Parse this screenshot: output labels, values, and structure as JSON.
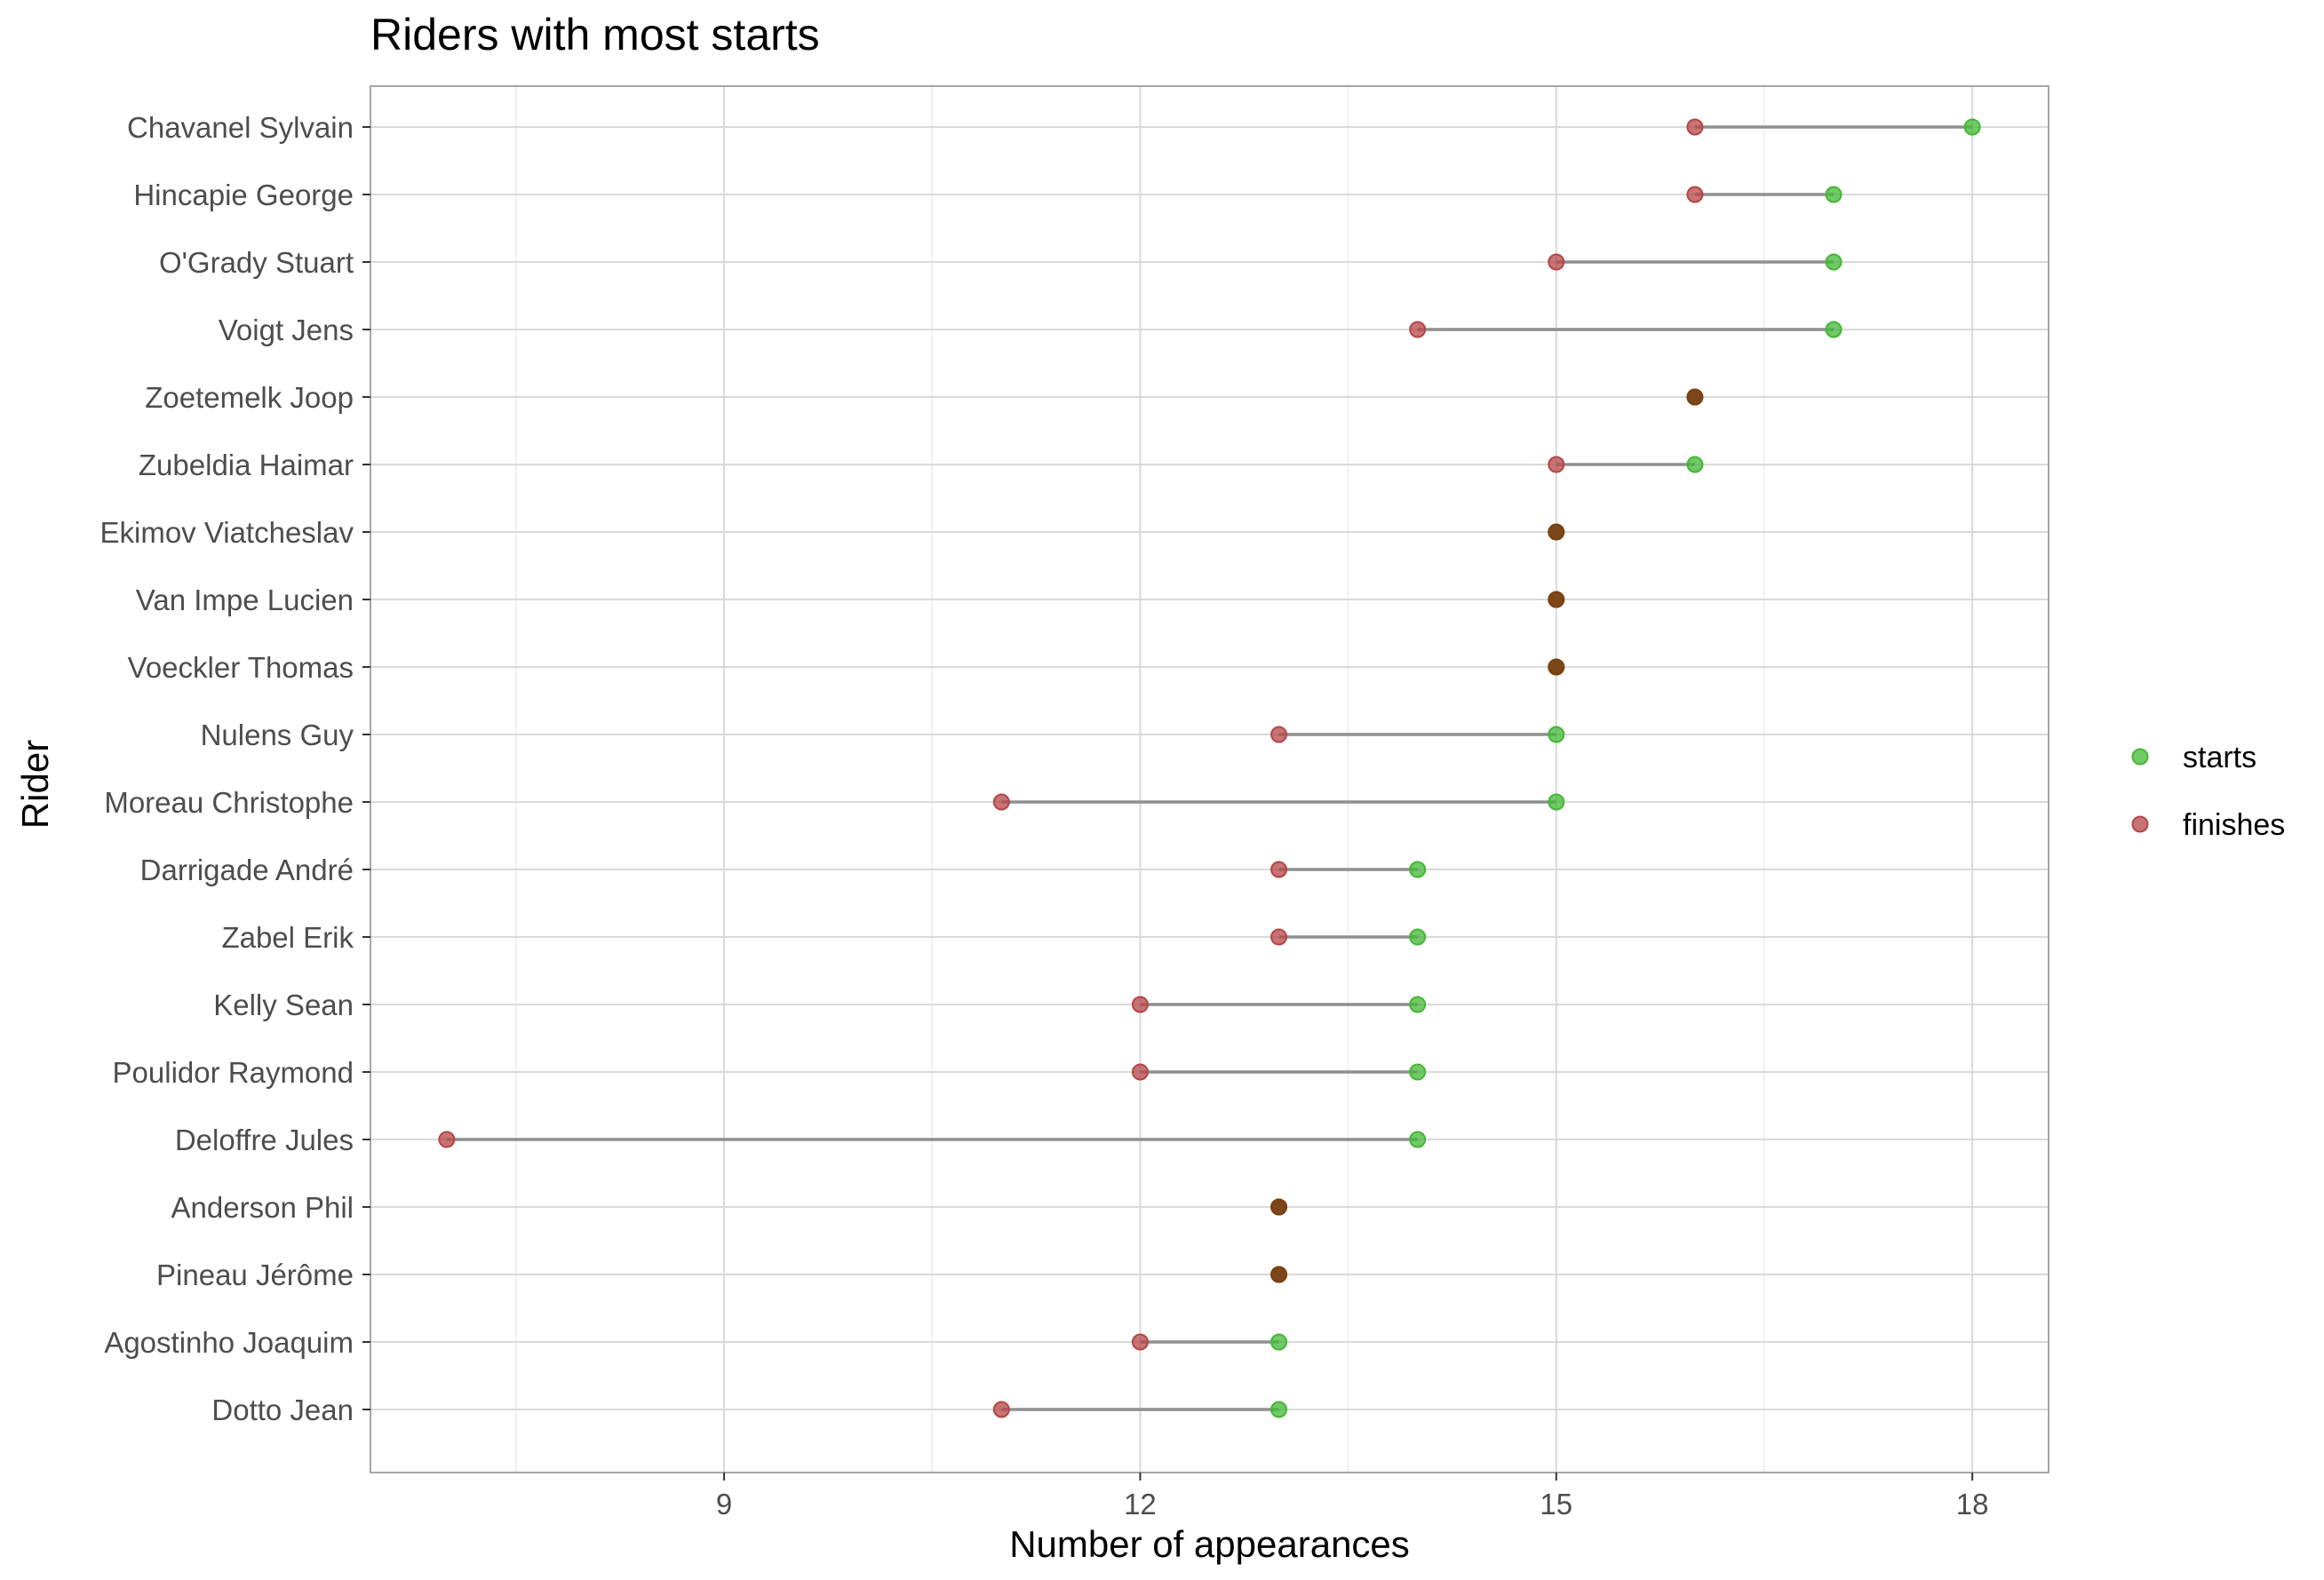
{
  "chart_data": {
    "type": "scatter",
    "subtype": "dumbbell",
    "title": "Riders with most starts",
    "xlabel": "Number of appearances",
    "ylabel": "Rider",
    "xlim": [
      6.45,
      18.55
    ],
    "xticks": [
      9,
      12,
      15,
      18
    ],
    "grid": true,
    "legend_position": "right",
    "colors": {
      "starts": "#43b734",
      "finishes": "#b54545",
      "overlap": "#7c3f14",
      "segment": "#8f8f8f",
      "grid": "#d9d9d9",
      "panel_border": "#a6a6a6",
      "tick_text": "#4d4d4d"
    },
    "categories": [
      "Chavanel Sylvain",
      "Hincapie George",
      "O'Grady Stuart",
      "Voigt Jens",
      "Zoetemelk Joop",
      "Zubeldia Haimar",
      "Ekimov Viatcheslav",
      "Van Impe Lucien",
      "Voeckler Thomas",
      "Nulens Guy",
      "Moreau Christophe",
      "Darrigade André",
      "Zabel Erik",
      "Kelly Sean",
      "Poulidor Raymond",
      "Deloffre Jules",
      "Anderson Phil",
      "Pineau Jérôme",
      "Agostinho Joaquim",
      "Dotto Jean"
    ],
    "series": [
      {
        "name": "starts",
        "values": [
          18,
          17,
          17,
          17,
          16,
          16,
          15,
          15,
          15,
          15,
          15,
          14,
          14,
          14,
          14,
          14,
          13,
          13,
          13,
          13
        ]
      },
      {
        "name": "finishes",
        "values": [
          16,
          16,
          15,
          14,
          16,
          15,
          15,
          15,
          15,
          13,
          11,
          13,
          13,
          12,
          12,
          7,
          13,
          13,
          12,
          11
        ]
      }
    ]
  }
}
